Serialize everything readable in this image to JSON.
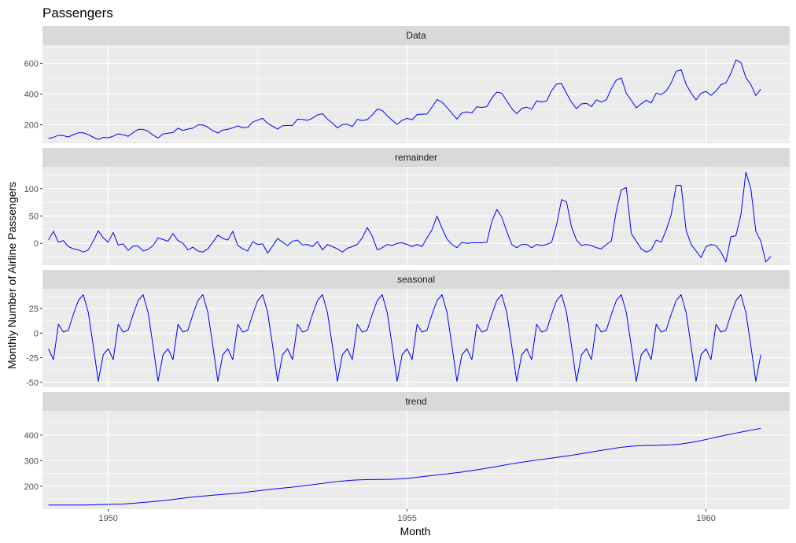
{
  "chart_data": {
    "type": "line",
    "title": "Passengers",
    "xlabel": "Month",
    "ylabel": "Monthly Number of Airline Passengers",
    "x": {
      "start_year": 1949,
      "start_month": 1,
      "count": 144,
      "xlim": [
        1948.9,
        1961.4
      ],
      "ticks": [
        1950,
        1955,
        1960
      ],
      "tick_labels": [
        "1950",
        "1955",
        "1960"
      ]
    },
    "line_color": "#0000ff",
    "panel_background": "#ebebeb",
    "strip_background": "#d9d9d9",
    "grid_color": "#ffffff",
    "panels": [
      {
        "name": "Data",
        "ylim": [
          80,
          720
        ],
        "yticks": [
          200,
          400,
          600
        ],
        "ytick_labels": [
          "200",
          "400",
          "600"
        ],
        "values": [
          112,
          118,
          132,
          129,
          121,
          135,
          148,
          148,
          136,
          119,
          104,
          118,
          115,
          126,
          141,
          135,
          125,
          149,
          170,
          170,
          158,
          133,
          114,
          140,
          145,
          150,
          178,
          163,
          172,
          178,
          199,
          199,
          184,
          162,
          146,
          166,
          171,
          180,
          193,
          181,
          183,
          218,
          230,
          242,
          209,
          191,
          172,
          194,
          196,
          196,
          236,
          235,
          229,
          243,
          264,
          272,
          237,
          211,
          180,
          201,
          204,
          188,
          235,
          227,
          234,
          264,
          302,
          293,
          259,
          229,
          203,
          229,
          242,
          233,
          267,
          269,
          270,
          315,
          364,
          347,
          312,
          274,
          237,
          278,
          284,
          277,
          317,
          313,
          318,
          374,
          413,
          405,
          355,
          306,
          271,
          306,
          315,
          301,
          356,
          348,
          355,
          422,
          465,
          467,
          404,
          347,
          305,
          336,
          340,
          318,
          362,
          348,
          363,
          435,
          491,
          505,
          404,
          359,
          310,
          337,
          360,
          342,
          406,
          396,
          420,
          472,
          548,
          559,
          463,
          407,
          362,
          405,
          417,
          391,
          419,
          461,
          472,
          535,
          622,
          606,
          508,
          461,
          390,
          432
        ]
      },
      {
        "name": "remainder",
        "ylim": [
          -40,
          140
        ],
        "yticks": [
          0,
          50,
          100
        ],
        "ytick_labels": [
          "0",
          "50",
          "100"
        ],
        "values": [
          6,
          22,
          2,
          5,
          -6,
          -10,
          -12,
          -16,
          -12,
          4,
          23,
          10,
          2,
          20,
          -3,
          -1,
          -13,
          -5,
          -5,
          -14,
          -11,
          -4,
          10,
          7,
          4,
          18,
          5,
          0,
          -12,
          -7,
          -14,
          -16,
          -10,
          2,
          15,
          9,
          6,
          22,
          -4,
          -10,
          -14,
          3,
          -2,
          -1,
          -18,
          -5,
          9,
          2,
          -4,
          4,
          6,
          -3,
          -2,
          -6,
          3,
          -12,
          -2,
          -6,
          -10,
          -16,
          -9,
          -6,
          -2,
          10,
          29,
          13,
          -12,
          -8,
          -2,
          -4,
          0,
          1,
          -2,
          -6,
          -2,
          -6,
          10,
          25,
          50,
          28,
          8,
          -2,
          -8,
          2,
          0,
          1,
          1,
          1,
          2,
          40,
          62,
          48,
          22,
          -2,
          -8,
          -2,
          -2,
          -8,
          -2,
          -4,
          -2,
          2,
          34,
          80,
          76,
          30,
          6,
          -4,
          -2,
          -4,
          -8,
          -10,
          -2,
          4,
          60,
          98,
          102,
          18,
          4,
          -10,
          -16,
          -12,
          6,
          2,
          24,
          52,
          106,
          106,
          24,
          -2,
          -14,
          -26,
          -6,
          -2,
          -4,
          -16,
          -34,
          12,
          14,
          52,
          130,
          100,
          22,
          4,
          -34,
          -24
        ]
      },
      {
        "name": "seasonal",
        "ylim": [
          -55,
          45
        ],
        "yticks": [
          -50,
          -25,
          0,
          25
        ],
        "ytick_labels": [
          "-50",
          "-25",
          "0",
          "25"
        ],
        "values": [
          -16,
          -27,
          9,
          1,
          3,
          19,
          33,
          39,
          21,
          -13,
          -49,
          -22,
          -16,
          -27,
          9,
          1,
          3,
          19,
          33,
          39,
          21,
          -13,
          -49,
          -22,
          -16,
          -27,
          9,
          1,
          3,
          19,
          33,
          39,
          21,
          -13,
          -49,
          -22,
          -16,
          -27,
          9,
          1,
          3,
          19,
          33,
          39,
          21,
          -13,
          -49,
          -22,
          -16,
          -27,
          9,
          1,
          3,
          19,
          33,
          39,
          21,
          -13,
          -49,
          -22,
          -16,
          -27,
          9,
          1,
          3,
          19,
          33,
          39,
          21,
          -13,
          -49,
          -22,
          -16,
          -27,
          9,
          1,
          3,
          19,
          33,
          39,
          21,
          -13,
          -49,
          -22,
          -16,
          -27,
          9,
          1,
          3,
          19,
          33,
          39,
          21,
          -13,
          -49,
          -22,
          -16,
          -27,
          9,
          1,
          3,
          19,
          33,
          39,
          21,
          -13,
          -49,
          -22,
          -16,
          -27,
          9,
          1,
          3,
          19,
          33,
          39,
          21,
          -13,
          -49,
          -22,
          -16,
          -27,
          9,
          1,
          3,
          19,
          33,
          39,
          21,
          -13,
          -49,
          -22,
          -16,
          -27,
          9,
          1,
          3,
          19,
          33,
          39,
          21,
          -13,
          -49,
          -22
        ]
      },
      {
        "name": "trend",
        "ylim": [
          110,
          495
        ],
        "yticks": [
          200,
          300,
          400
        ],
        "ytick_labels": [
          "200",
          "300",
          "400"
        ],
        "values": [
          126.0,
          126.0,
          126.0,
          126.0,
          126.0,
          126.0,
          126.0,
          126.0,
          126.5,
          127.0,
          127.6,
          128.1,
          128.6,
          129.1,
          129.7,
          130.2,
          131.7,
          133.3,
          134.8,
          136.4,
          137.9,
          139.5,
          141.5,
          143.6,
          145.8,
          148.1,
          150.5,
          152.9,
          155.3,
          157.5,
          159.5,
          161.3,
          162.9,
          164.5,
          166.1,
          167.6,
          169.2,
          170.9,
          172.7,
          174.8,
          177.1,
          179.4,
          181.7,
          184.0,
          186.3,
          188.4,
          190.5,
          192.4,
          194.3,
          196.3,
          198.4,
          200.7,
          203.2,
          205.7,
          208.2,
          210.7,
          213.2,
          215.7,
          218.0,
          220.0,
          221.7,
          223.1,
          224.2,
          225.0,
          225.5,
          225.8,
          226.1,
          226.4,
          226.7,
          227.2,
          227.9,
          229.0,
          230.6,
          232.5,
          234.7,
          237.0,
          239.3,
          241.6,
          243.8,
          246.0,
          248.2,
          250.4,
          252.8,
          255.3,
          258.1,
          261.0,
          264.1,
          267.2,
          270.5,
          273.8,
          277.2,
          280.6,
          284.0,
          287.3,
          290.5,
          293.6,
          296.5,
          299.3,
          301.9,
          304.5,
          307.1,
          309.7,
          312.4,
          315.1,
          317.9,
          320.8,
          323.9,
          327.1,
          330.3,
          333.6,
          336.9,
          340.2,
          343.4,
          346.5,
          349.4,
          352.0,
          354.2,
          356.0,
          357.4,
          358.4,
          359.1,
          359.6,
          360.0,
          360.5,
          361.1,
          362.0,
          363.5,
          365.4,
          367.9,
          370.9,
          374.5,
          378.5,
          382.7,
          387.0,
          391.3,
          395.6,
          399.8,
          403.9,
          407.8,
          411.6,
          415.4,
          419.0,
          422.5,
          425.9
        ]
      }
    ]
  }
}
